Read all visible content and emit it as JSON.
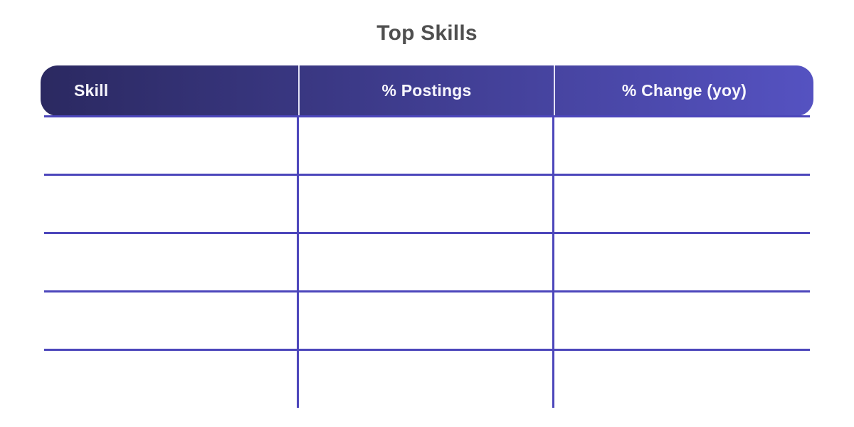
{
  "title": "Top Skills",
  "table": {
    "columns": [
      {
        "label": "Skill",
        "align": "left"
      },
      {
        "label": "% Postings",
        "align": "center"
      },
      {
        "label": "% Change (yoy)",
        "align": "center"
      }
    ],
    "rows": [
      [
        "",
        "",
        ""
      ],
      [
        "",
        "",
        ""
      ],
      [
        "",
        "",
        ""
      ],
      [
        "",
        "",
        ""
      ],
      [
        "",
        "",
        ""
      ]
    ]
  },
  "colors": {
    "header_gradient_start": "#2b2961",
    "header_gradient_end": "#5552c1",
    "header_text": "#f8f7fd",
    "header_divider": "#e3e2f5",
    "grid_line": "#4c46bb",
    "title_text": "#4f4f4f",
    "background": "#ffffff"
  },
  "chart_data": {
    "type": "table",
    "title": "Top Skills",
    "columns": [
      "Skill",
      "% Postings",
      "% Change (yoy)"
    ],
    "rows": [
      [
        "",
        "",
        ""
      ],
      [
        "",
        "",
        ""
      ],
      [
        "",
        "",
        ""
      ],
      [
        "",
        "",
        ""
      ],
      [
        "",
        "",
        ""
      ]
    ]
  }
}
